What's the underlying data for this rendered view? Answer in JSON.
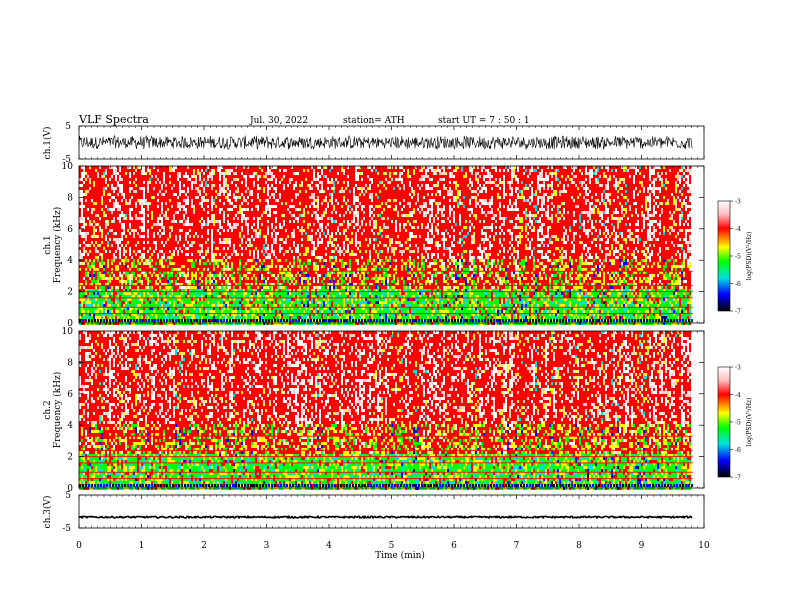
{
  "header": {
    "title": "VLF  Spectra",
    "date": "Jul.  30,  2022",
    "station": "station= ATH",
    "start": "start  UT  =    7  : 50 : 1"
  },
  "axes": {
    "xlabel": "Time  (min)",
    "ch1_wave_label": "ch.1(V)",
    "ch3_wave_label": "ch.3(V)",
    "ch1_spec_label": "ch.1",
    "ch2_spec_label": "ch.2",
    "freq_label": "Frequency  (kHz)",
    "colorbar_label": "log(PSD)(V²/Hz)"
  },
  "colors": {
    "spectrogram": [
      "#ffffff",
      "#ff0000",
      "#ffff00",
      "#00ff00",
      "#00e0e0",
      "#0000ff",
      "#000000"
    ]
  },
  "chart_data": [
    {
      "type": "line",
      "name": "ch1-waveform",
      "ylabel": "ch.1(V)",
      "ylim": [
        -5,
        5
      ],
      "yticks": [
        -5,
        5
      ],
      "xlim": [
        0,
        10
      ],
      "data_xrange": [
        0,
        9.82
      ],
      "description_values": "noisy broadband signal, approx between -2 and +2 V"
    },
    {
      "type": "heatmap",
      "name": "ch1-spectrogram",
      "ylabel": "Frequency  (kHz)",
      "ylim": [
        0,
        10
      ],
      "yticks": [
        0,
        2,
        4,
        6,
        8,
        10
      ],
      "xlim": [
        0,
        10
      ],
      "colorbar": {
        "label": "log(PSD)(V²/Hz)",
        "range": [
          -7,
          -3
        ],
        "ticks": [
          -3,
          -4,
          -5,
          -6,
          -7
        ]
      }
    },
    {
      "type": "heatmap",
      "name": "ch2-spectrogram",
      "ylabel": "Frequency  (kHz)",
      "ylim": [
        0,
        10
      ],
      "yticks": [
        0,
        2,
        4,
        6,
        8,
        10
      ],
      "xlim": [
        0,
        10
      ],
      "colorbar": {
        "label": "log(PSD)(V²/Hz)",
        "range": [
          -7,
          -3
        ],
        "ticks": [
          -3,
          -4,
          -5,
          -6,
          -7
        ]
      }
    },
    {
      "type": "line",
      "name": "ch3-waveform",
      "ylabel": "ch.3(V)",
      "ylim": [
        -5,
        5
      ],
      "yticks": [
        -5,
        5
      ],
      "xlim": [
        0,
        10
      ],
      "data_xrange": [
        0,
        9.82
      ],
      "description_values": "nearly flat signal near -1.7 V"
    }
  ],
  "x_ticks": [
    "0",
    "1",
    "2",
    "3",
    "4",
    "5",
    "6",
    "7",
    "8",
    "9",
    "10"
  ],
  "spec_yticks": [
    "0",
    "2",
    "4",
    "6",
    "8",
    "10"
  ],
  "wave_yticks": [
    "5",
    "-5"
  ],
  "cb_ticks": [
    "-3",
    "-4",
    "-5",
    "-6",
    "-7"
  ]
}
